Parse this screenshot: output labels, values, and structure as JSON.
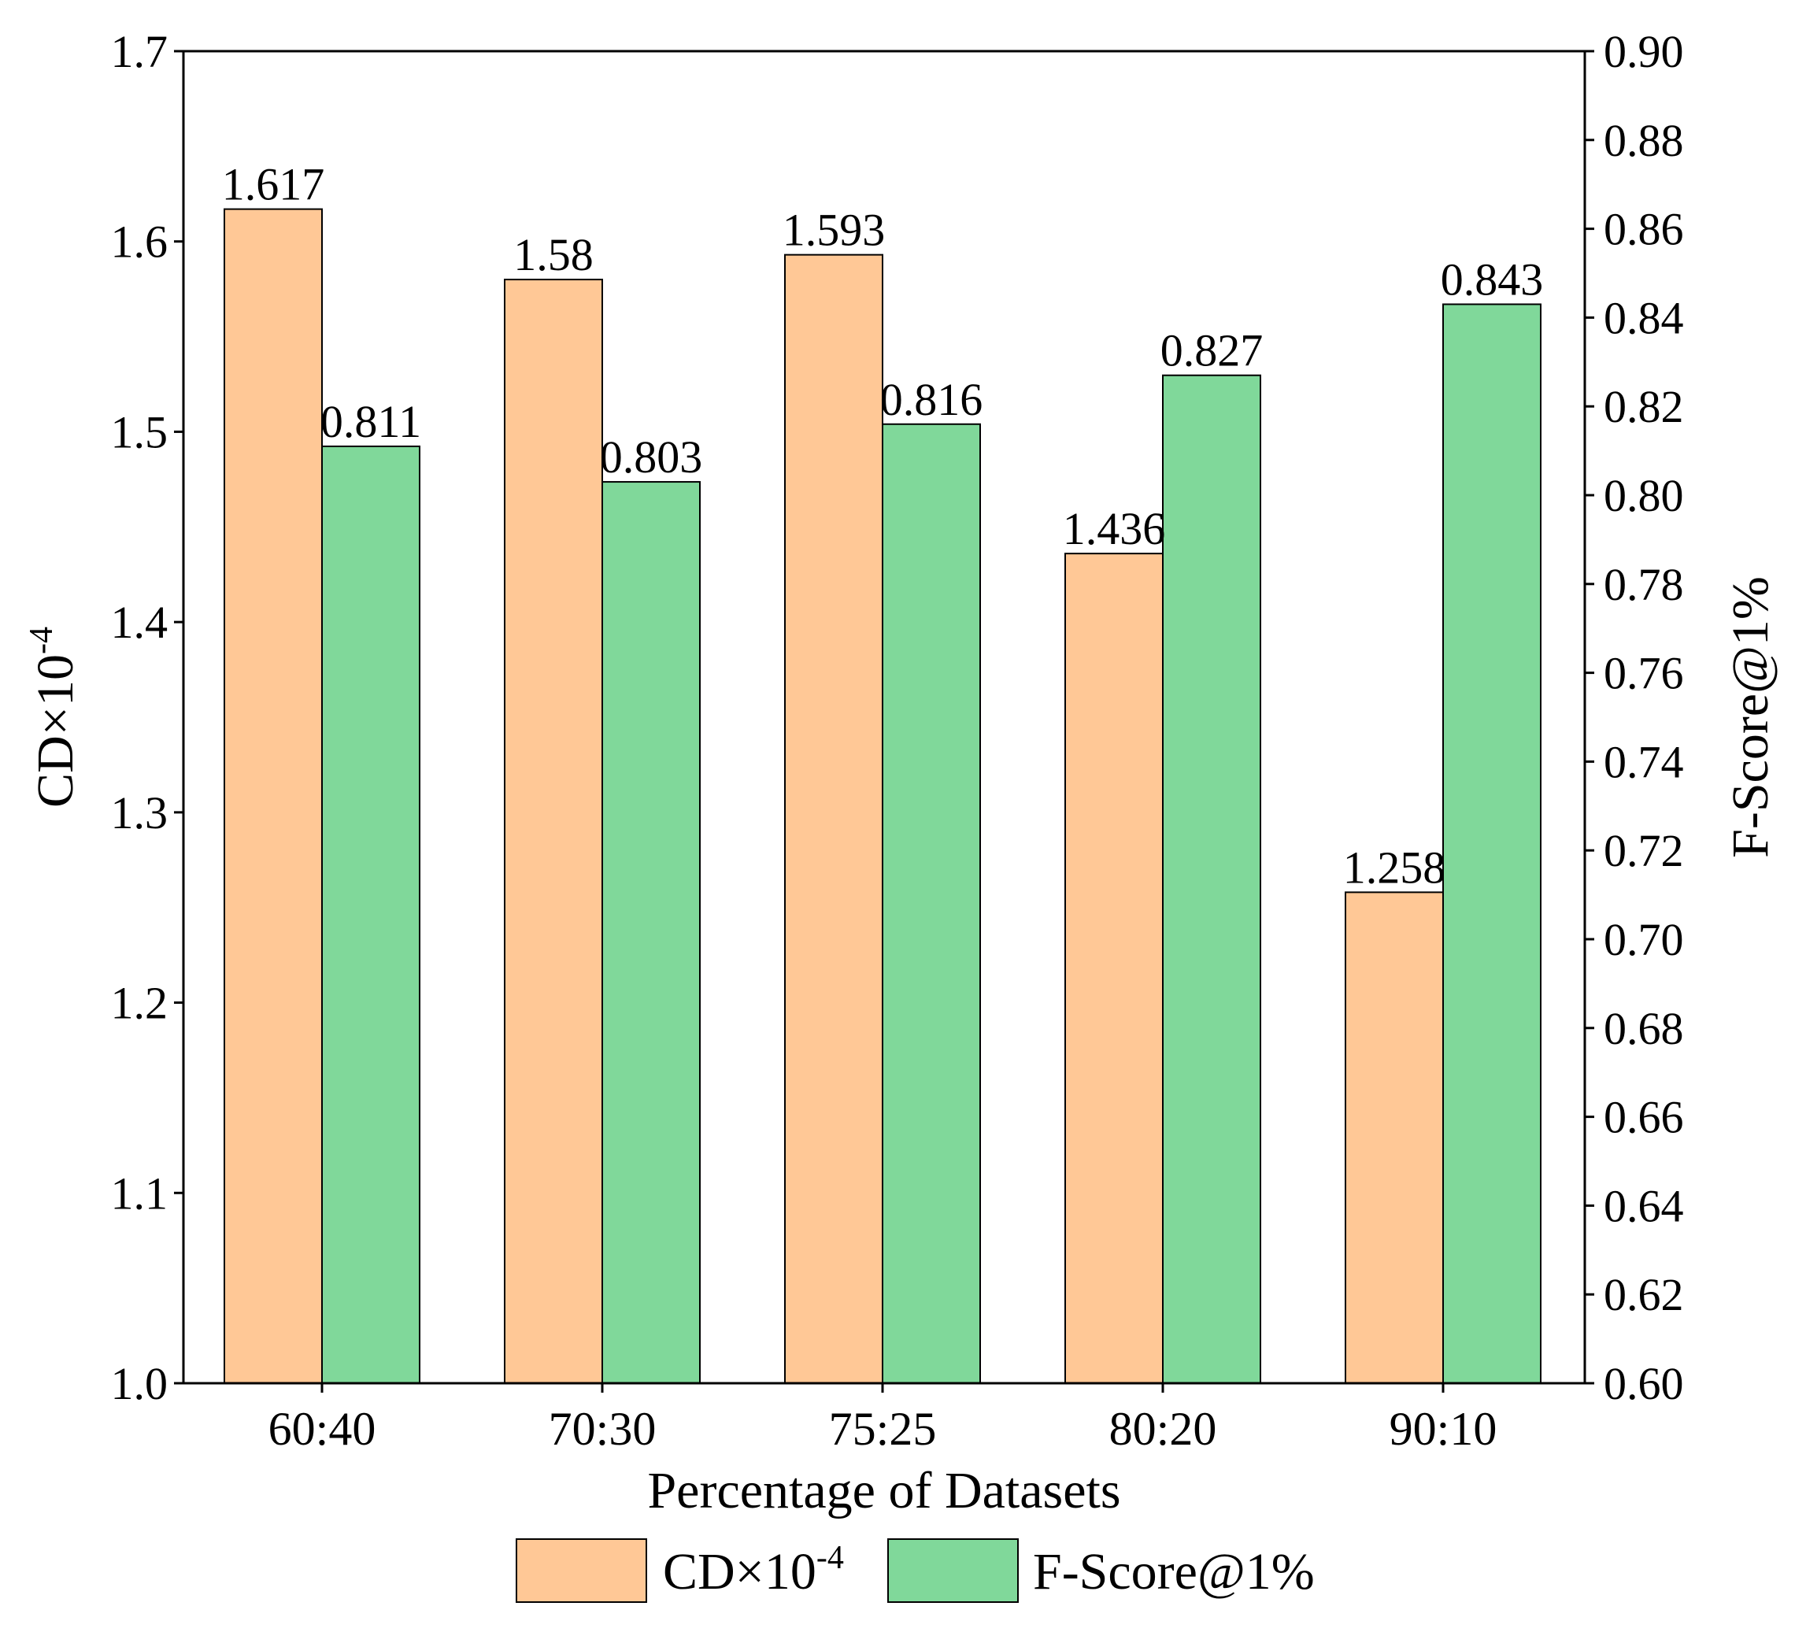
{
  "chart_data": {
    "type": "bar",
    "title": "",
    "xlabel": "Percentage of Datasets",
    "ylabel": {
      "base": "CD×10",
      "exp": "-4"
    },
    "y2label": "F-Score@1%",
    "categories": [
      "60:40",
      "70:30",
      "75:25",
      "80:20",
      "90:10"
    ],
    "ylim": [
      1.0,
      1.7
    ],
    "y2lim": [
      0.6,
      0.9
    ],
    "yticks": [
      "1.0",
      "1.1",
      "1.2",
      "1.3",
      "1.4",
      "1.5",
      "1.6",
      "1.7"
    ],
    "y2ticks": [
      "0.60",
      "0.62",
      "0.64",
      "0.66",
      "0.68",
      "0.70",
      "0.72",
      "0.74",
      "0.76",
      "0.78",
      "0.80",
      "0.82",
      "0.84",
      "0.86",
      "0.88",
      "0.90"
    ],
    "grid": false,
    "legend_position": "bottom-center",
    "series": [
      {
        "name": "CD×10-4",
        "legend_base": "CD×10",
        "legend_exp": "-4",
        "axis": "left",
        "color": "#FFC896",
        "values": [
          1.617,
          1.58,
          1.593,
          1.436,
          1.258
        ],
        "labels": [
          "1.617",
          "1.58",
          "1.593",
          "1.436",
          "1.258"
        ]
      },
      {
        "name": "F-Score@1%",
        "legend_base": "F-Score@1%",
        "legend_exp": "",
        "axis": "right",
        "color": "#80D89A",
        "values": [
          0.811,
          0.803,
          0.816,
          0.827,
          0.843
        ],
        "labels": [
          "0.811",
          "0.803",
          "0.816",
          "0.827",
          "0.843"
        ]
      }
    ]
  }
}
